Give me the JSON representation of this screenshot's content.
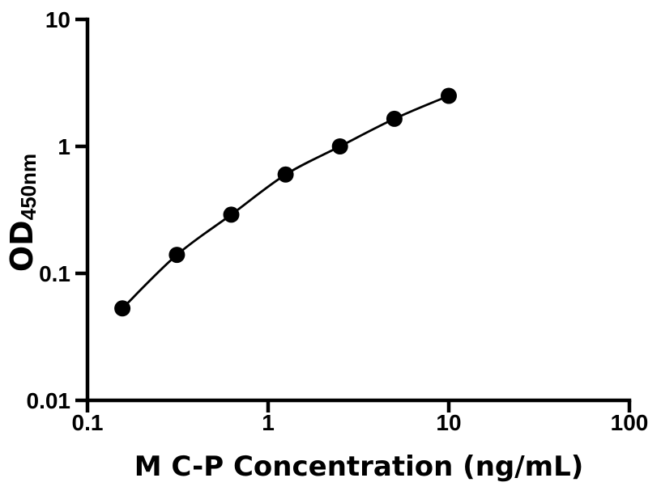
{
  "figure": {
    "background_color": "#ffffff",
    "ink_color": "#000000"
  },
  "chart_data": {
    "type": "scatter",
    "subtype": "elisa-standard-curve",
    "title": "",
    "xlabel": "M C-P Concentration (ng/mL)",
    "ylabel_main": "OD",
    "ylabel_sub": "450nm",
    "x_scale": "log",
    "y_scale": "log",
    "xlim": [
      0.1,
      100
    ],
    "ylim": [
      0.01,
      10
    ],
    "x_ticks": [
      0.1,
      1,
      10,
      100
    ],
    "x_tick_labels": [
      "0.1",
      "1",
      "10",
      "100"
    ],
    "y_ticks": [
      0.01,
      0.1,
      1,
      10
    ],
    "y_tick_labels": [
      "0.01",
      "0.1",
      "1",
      "10"
    ],
    "grid": false,
    "legend": "none",
    "series": [
      {
        "name": "standard-curve",
        "marker": "filled-circle",
        "marker_color": "#000000",
        "line_color": "#000000",
        "x": [
          0.156,
          0.3125,
          0.625,
          1.25,
          2.5,
          5,
          10
        ],
        "y": [
          0.053,
          0.14,
          0.29,
          0.6,
          1.0,
          1.65,
          2.5
        ]
      }
    ]
  }
}
